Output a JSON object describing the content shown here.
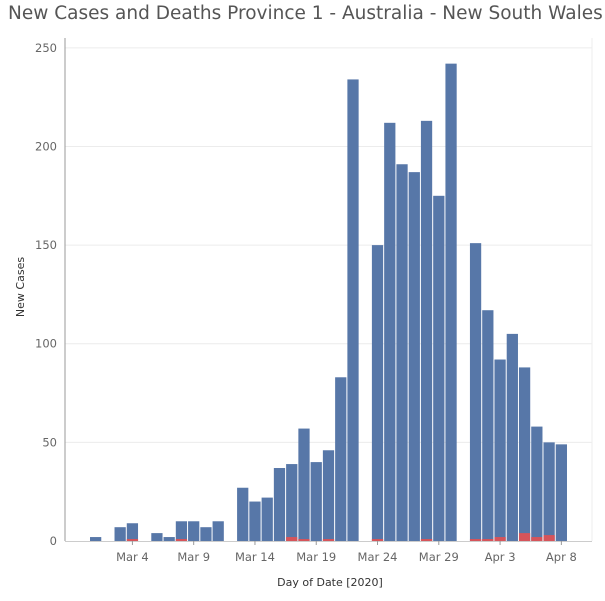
{
  "chart_data": {
    "type": "bar",
    "title": "New Cases and Deaths Province 1 - Australia - New South Wales",
    "xlabel": "Day of Date [2020]",
    "ylabel": "New Cases",
    "ylim": [
      0,
      255
    ],
    "yticks": [
      0,
      50,
      100,
      150,
      200,
      250
    ],
    "grid": true,
    "x_tick_labels": [
      {
        "day": 4,
        "label": "Mar 4"
      },
      {
        "day": 9,
        "label": "Mar 9"
      },
      {
        "day": 14,
        "label": "Mar 14"
      },
      {
        "day": 19,
        "label": "Mar 19"
      },
      {
        "day": 24,
        "label": "Mar 24"
      },
      {
        "day": 29,
        "label": "Mar 29"
      },
      {
        "day": 34,
        "label": "Apr 3"
      },
      {
        "day": 39,
        "label": "Apr 8"
      }
    ],
    "day_range": [
      -1,
      41
    ],
    "series": [
      {
        "color": "#5777a8",
        "points": [
          {
            "day": 1,
            "value": 2
          },
          {
            "day": 3,
            "value": 7
          },
          {
            "day": 4,
            "value": 9
          },
          {
            "day": 6,
            "value": 4
          },
          {
            "day": 7,
            "value": 2
          },
          {
            "day": 8,
            "value": 10
          },
          {
            "day": 9,
            "value": 10
          },
          {
            "day": 10,
            "value": 7
          },
          {
            "day": 11,
            "value": 10
          },
          {
            "day": 13,
            "value": 27
          },
          {
            "day": 14,
            "value": 20
          },
          {
            "day": 15,
            "value": 22
          },
          {
            "day": 16,
            "value": 37
          },
          {
            "day": 17,
            "value": 39
          },
          {
            "day": 18,
            "value": 57
          },
          {
            "day": 19,
            "value": 40
          },
          {
            "day": 20,
            "value": 46
          },
          {
            "day": 21,
            "value": 83
          },
          {
            "day": 22,
            "value": 234
          },
          {
            "day": 24,
            "value": 150
          },
          {
            "day": 25,
            "value": 212
          },
          {
            "day": 26,
            "value": 191
          },
          {
            "day": 27,
            "value": 187
          },
          {
            "day": 28,
            "value": 213
          },
          {
            "day": 29,
            "value": 175
          },
          {
            "day": 30,
            "value": 242
          },
          {
            "day": 32,
            "value": 151
          },
          {
            "day": 33,
            "value": 117
          },
          {
            "day": 34,
            "value": 92
          },
          {
            "day": 35,
            "value": 105
          },
          {
            "day": 36,
            "value": 88
          },
          {
            "day": 37,
            "value": 58
          },
          {
            "day": 38,
            "value": 50
          },
          {
            "day": 39,
            "value": 49
          }
        ]
      },
      {
        "color": "#d6545a",
        "points": [
          {
            "day": 4,
            "value": 1
          },
          {
            "day": 8,
            "value": 1
          },
          {
            "day": 17,
            "value": 2
          },
          {
            "day": 18,
            "value": 1
          },
          {
            "day": 20,
            "value": 1
          },
          {
            "day": 24,
            "value": 1
          },
          {
            "day": 28,
            "value": 1
          },
          {
            "day": 32,
            "value": 1
          },
          {
            "day": 33,
            "value": 1
          },
          {
            "day": 34,
            "value": 2
          },
          {
            "day": 36,
            "value": 4
          },
          {
            "day": 37,
            "value": 2
          },
          {
            "day": 38,
            "value": 3
          }
        ]
      }
    ]
  }
}
